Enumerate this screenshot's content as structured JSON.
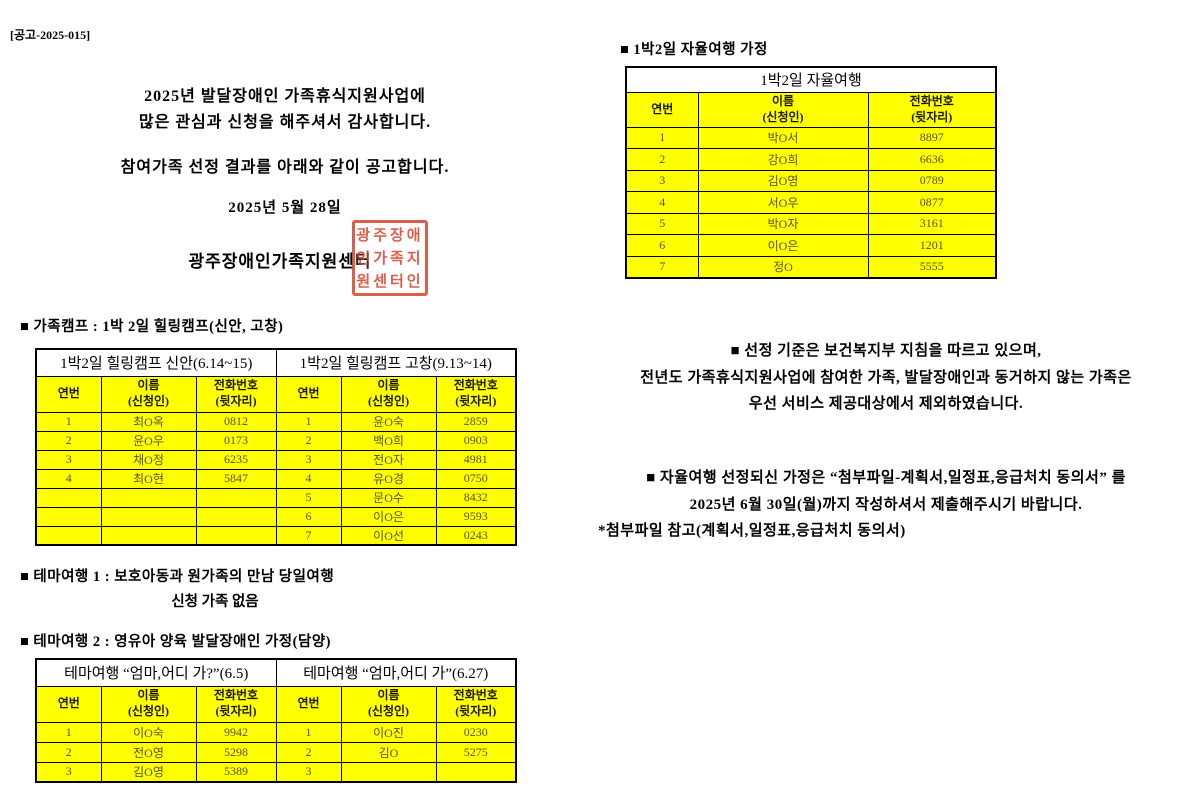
{
  "doc_number": "[공고-2025-015]",
  "intro": {
    "line1": "2025년 발달장애인 가족휴식지원사업에",
    "line2": "많은 관심과 신청을 해주셔서 감사합니다.",
    "line3": "참여가족 선정 결과를 아래와 같이 공고합니다.",
    "date": "2025년 5월 28일",
    "org_name": "광주장애인가족지원센터",
    "stamp_row1": "광주장애",
    "stamp_row2": "인가족지",
    "stamp_row3": "원센터인"
  },
  "table_headers": {
    "no": "연번",
    "name_line1": "이름",
    "name_line2": "(신청인)",
    "phone_line1": "전화번호",
    "phone_line2": "(뒷자리)"
  },
  "family_camp": {
    "heading": "■ 가족캠프 : 1박 2일 힐링캠프(신안, 고창)",
    "left": {
      "title": "1박2일 힐링캠프 신안(6.14~15)",
      "rows": [
        [
          "1",
          "최O옥",
          "0812"
        ],
        [
          "2",
          "윤O우",
          "0173"
        ],
        [
          "3",
          "채O정",
          "6235"
        ],
        [
          "4",
          "최O현",
          "5847"
        ],
        [
          "",
          "",
          ""
        ],
        [
          "",
          "",
          ""
        ],
        [
          "",
          "",
          ""
        ]
      ]
    },
    "right": {
      "title": "1박2일 힐링캠프 고창(9.13~14)",
      "rows": [
        [
          "1",
          "윤O숙",
          "2859"
        ],
        [
          "2",
          "백O희",
          "0903"
        ],
        [
          "3",
          "전O자",
          "4981"
        ],
        [
          "4",
          "유O경",
          "0750"
        ],
        [
          "5",
          "문O수",
          "8432"
        ],
        [
          "6",
          "이O은",
          "9593"
        ],
        [
          "7",
          "이O선",
          "0243"
        ]
      ]
    }
  },
  "self_travel": {
    "heading": "■ 1박2일 자율여행 가정",
    "title": "1박2일 자율여행",
    "rows": [
      [
        "1",
        "박O서",
        "8897"
      ],
      [
        "2",
        "강O희",
        "6636"
      ],
      [
        "3",
        "김O영",
        "0789"
      ],
      [
        "4",
        "서O우",
        "0877"
      ],
      [
        "5",
        "박O자",
        "3161"
      ],
      [
        "6",
        "이O은",
        "1201"
      ],
      [
        "7",
        "정O",
        "5555"
      ]
    ]
  },
  "theme_travel_1": {
    "heading": "■ 테마여행 1 : 보호아동과 원가족의 만남 당일여행",
    "note": "신청 가족 없음"
  },
  "theme_travel_2": {
    "heading": "■ 테마여행 2 : 영유아 양육 발달장애인 가정(담양)",
    "left": {
      "title": "테마여행 “엄마,어디 가?”(6.5)",
      "rows": [
        [
          "1",
          "이O숙",
          "9942"
        ],
        [
          "2",
          "전O영",
          "5298"
        ],
        [
          "3",
          "김O영",
          "5389"
        ]
      ]
    },
    "right": {
      "title": "테마여행 “엄마,어디 가”(6.27)",
      "rows": [
        [
          "1",
          "이O진",
          "0230"
        ],
        [
          "2",
          "김O",
          "5275"
        ],
        [
          "3",
          "",
          ""
        ]
      ]
    }
  },
  "criteria_notice": {
    "line1": "■ 선정 기준은 보건복지부 지침을 따르고 있으며,",
    "line2": "전년도 가족휴식지원사업에 참여한 가족, 발달장애인과 동거하지 않는 가족은",
    "line3": "우선 서비스 제공대상에서 제외하였습니다."
  },
  "submission_notice": {
    "line1": "■ 자율여행 선정되신 가정은  “첨부파일-계획서,일정표,응급처치 동의서” 를",
    "line2": "2025년 6월 30일(월)까지 작성하셔서 제출해주시기 바랍니다.",
    "line3": "*첨부파일 참고(계획서,일정표,응급처치 동의서)"
  },
  "colors": {
    "highlight": "#ffff00",
    "stamp_red": "#d5442c",
    "border": "#000000"
  }
}
